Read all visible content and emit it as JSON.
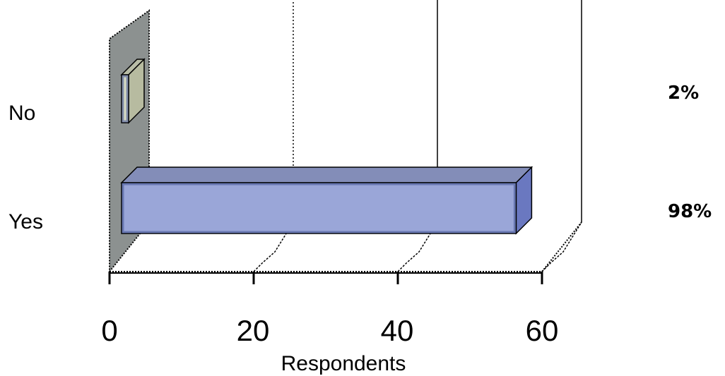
{
  "chart_data": {
    "type": "bar",
    "orientation": "horizontal",
    "three_d": true,
    "categories": [
      "No",
      "Yes"
    ],
    "values": [
      1,
      57
    ],
    "data_labels": [
      "2%",
      "98%"
    ],
    "xlabel": "Respondents",
    "xlim": [
      0,
      60
    ],
    "x_ticks": [
      "0",
      "20",
      "40",
      "60"
    ],
    "grid": true,
    "colors": {
      "yes_bar": "#9aa6d8",
      "no_bar": "#d9ddc3",
      "back_wall": "#8c9190"
    }
  }
}
